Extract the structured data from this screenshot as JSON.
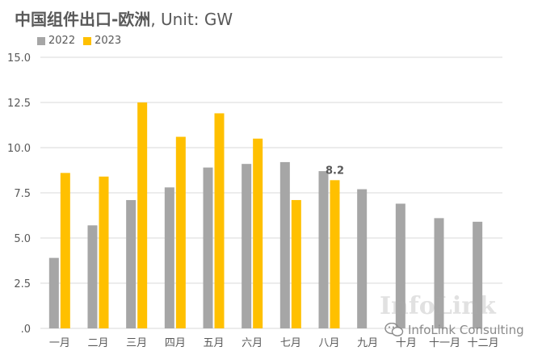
{
  "title": {
    "main": "中国组件出口-欧洲",
    "suffix": ", Unit: GW"
  },
  "chart_data": {
    "type": "bar",
    "title": "中国组件出口-欧洲, Unit: GW",
    "categories": [
      "一月",
      "二月",
      "三月",
      "四月",
      "五月",
      "六月",
      "七月",
      "八月",
      "九月",
      "十月",
      "十一月",
      "十二月"
    ],
    "series": [
      {
        "name": "2022",
        "color": "#a6a6a6",
        "values": [
          3.9,
          5.7,
          7.1,
          7.8,
          8.9,
          9.1,
          9.2,
          8.7,
          7.7,
          6.9,
          6.1,
          5.9
        ]
      },
      {
        "name": "2023",
        "color": "#ffc000",
        "values": [
          8.6,
          8.4,
          12.5,
          10.6,
          11.9,
          10.5,
          7.1,
          8.2,
          null,
          null,
          null,
          null
        ]
      }
    ],
    "ylim": [
      0,
      15
    ],
    "yticks": [
      "15.0",
      "12.5",
      "10.0",
      "7.5",
      "5.0",
      "2.5",
      ".0"
    ],
    "annotation": "8.2",
    "grid": true,
    "legend": "top-left"
  },
  "watermark": "InfoLink",
  "credit": "InfoLink Consulting"
}
